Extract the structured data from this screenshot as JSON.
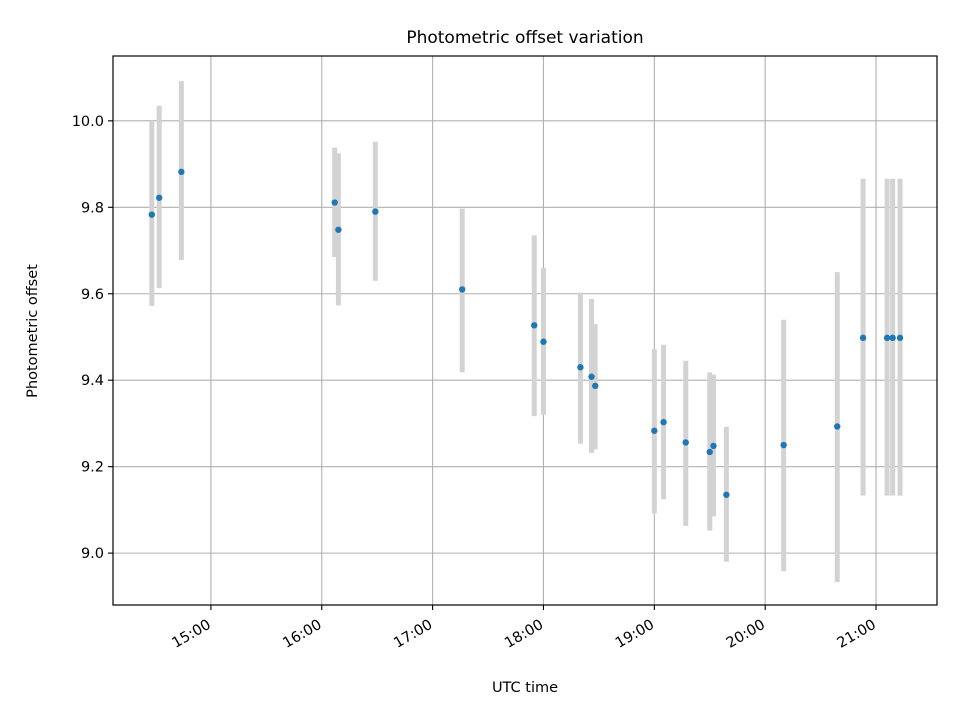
{
  "chart_data": {
    "type": "scatter",
    "title": "Photometric offset variation",
    "xlabel": "UTC time",
    "ylabel": "Photometric offset",
    "xlim": [
      "14:07",
      "21:33"
    ],
    "ylim": [
      8.88,
      10.15
    ],
    "x_ticks": [
      "15:00",
      "16:00",
      "17:00",
      "18:00",
      "19:00",
      "20:00",
      "21:00"
    ],
    "y_ticks": [
      "9.0",
      "9.2",
      "9.4",
      "9.6",
      "9.8",
      "10.0"
    ],
    "grid": true,
    "colors": {
      "marker": "#1f77b4",
      "errorbar": "#d3d3d3",
      "grid": "#b0b0b0"
    },
    "points": [
      {
        "x": "14:28",
        "y": 9.783,
        "lo": 9.572,
        "hi": 9.998
      },
      {
        "x": "14:32",
        "y": 9.822,
        "lo": 9.613,
        "hi": 10.035
      },
      {
        "x": "14:44",
        "y": 9.882,
        "lo": 9.678,
        "hi": 10.092
      },
      {
        "x": "16:07",
        "y": 9.811,
        "lo": 9.685,
        "hi": 9.938
      },
      {
        "x": "16:09",
        "y": 9.748,
        "lo": 9.573,
        "hi": 9.925
      },
      {
        "x": "16:29",
        "y": 9.79,
        "lo": 9.63,
        "hi": 9.952
      },
      {
        "x": "17:16",
        "y": 9.61,
        "lo": 9.418,
        "hi": 9.797
      },
      {
        "x": "17:55",
        "y": 9.527,
        "lo": 9.317,
        "hi": 9.735
      },
      {
        "x": "18:00",
        "y": 9.489,
        "lo": 9.32,
        "hi": 9.66
      },
      {
        "x": "18:20",
        "y": 9.43,
        "lo": 9.253,
        "hi": 9.603
      },
      {
        "x": "18:26",
        "y": 9.408,
        "lo": 9.232,
        "hi": 9.588
      },
      {
        "x": "18:28",
        "y": 9.387,
        "lo": 9.24,
        "hi": 9.53
      },
      {
        "x": "19:00",
        "y": 9.283,
        "lo": 9.092,
        "hi": 9.472
      },
      {
        "x": "19:05",
        "y": 9.303,
        "lo": 9.125,
        "hi": 9.482
      },
      {
        "x": "19:17",
        "y": 9.256,
        "lo": 9.063,
        "hi": 9.445
      },
      {
        "x": "19:30",
        "y": 9.234,
        "lo": 9.052,
        "hi": 9.418
      },
      {
        "x": "19:32",
        "y": 9.248,
        "lo": 9.085,
        "hi": 9.413
      },
      {
        "x": "19:39",
        "y": 9.135,
        "lo": 8.98,
        "hi": 9.292
      },
      {
        "x": "20:10",
        "y": 9.25,
        "lo": 8.958,
        "hi": 9.54
      },
      {
        "x": "20:39",
        "y": 9.293,
        "lo": 8.933,
        "hi": 9.65
      },
      {
        "x": "20:53",
        "y": 9.498,
        "lo": 9.133,
        "hi": 9.866
      },
      {
        "x": "21:06",
        "y": 9.498,
        "lo": 9.133,
        "hi": 9.866
      },
      {
        "x": "21:09",
        "y": 9.498,
        "lo": 9.133,
        "hi": 9.866
      },
      {
        "x": "21:13",
        "y": 9.498,
        "lo": 9.133,
        "hi": 9.866
      }
    ]
  }
}
